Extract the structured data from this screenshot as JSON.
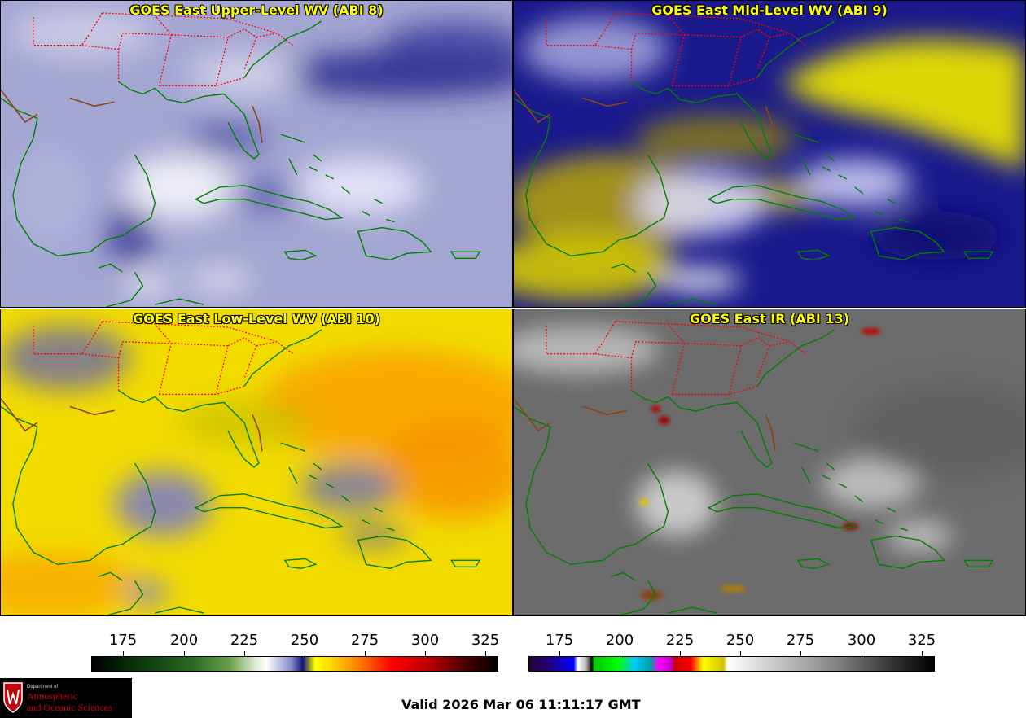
{
  "panels": {
    "upper_level": {
      "title": "GOES East Upper-Level WV (ABI 8)",
      "colormap": "gray-lavender-blue",
      "background": "#a4a6d2"
    },
    "mid_level": {
      "title": "GOES East Mid-Level WV (ABI 9)",
      "colormap": "blue-yellow",
      "background": "#1a1a8c"
    },
    "low_level": {
      "title": "GOES East Low-Level WV (ABI 10)",
      "colormap": "yellow-orange",
      "background": "#f2dc00"
    },
    "infrared": {
      "title": "GOES East IR (ABI 13)",
      "colormap": "grayscale-enhanced",
      "background": "#6c6c6c"
    }
  },
  "colorbars": {
    "wv": {
      "ticks": [
        "175",
        "200",
        "225",
        "250",
        "275",
        "300",
        "325"
      ]
    },
    "ir": {
      "ticks": [
        "175",
        "200",
        "225",
        "250",
        "275",
        "300",
        "325"
      ]
    }
  },
  "map_colors": {
    "coastline": "#008000",
    "state_borders": "#ff0000",
    "title": "#ffff00"
  },
  "logo": {
    "dept": "Department of",
    "line1": "Atmospheric",
    "line2": "and Oceanic Sciences"
  },
  "valid_time": "Valid 2026 Mar 06 11:11:17 GMT"
}
